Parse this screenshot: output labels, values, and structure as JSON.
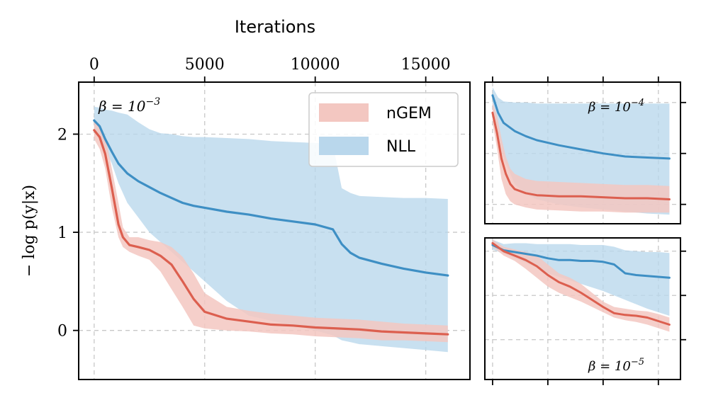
{
  "chart_data": [
    {
      "type": "line",
      "panel": "main",
      "top_xlabel": "Iterations",
      "ylabel": "− log p(y|x)",
      "annotation": "β = 10",
      "annotation_exp": "−3",
      "x_ticks": [
        0,
        5000,
        10000,
        15000
      ],
      "x_tick_labels": [
        "0",
        "5000",
        "10000",
        "15000"
      ],
      "y_ticks": [
        0,
        1,
        2
      ],
      "y_tick_labels": [
        "0",
        "1",
        "2"
      ],
      "xlim": [
        -700,
        17000
      ],
      "ylim": [
        -0.5,
        2.53
      ],
      "grid": true,
      "legend": {
        "position": "top-right",
        "entries": [
          "nGEM",
          "NLL"
        ]
      },
      "colors": {
        "nGEM": "#dc5f4f",
        "NLL": "#3e8fc4",
        "nGEM_band": "#f3c7c1",
        "NLL_band": "#b9d7ec"
      },
      "series": [
        {
          "name": "nGEM",
          "x": [
            0,
            250,
            500,
            800,
            1100,
            1300,
            1600,
            2000,
            2500,
            3000,
            3500,
            4000,
            4500,
            5000,
            6000,
            7000,
            8000,
            9000,
            10000,
            11000,
            12000,
            13000,
            14000,
            15000,
            16000
          ],
          "mean": [
            2.04,
            1.97,
            1.8,
            1.45,
            1.08,
            0.95,
            0.87,
            0.85,
            0.82,
            0.76,
            0.67,
            0.5,
            0.32,
            0.19,
            0.12,
            0.09,
            0.06,
            0.05,
            0.03,
            0.02,
            0.01,
            -0.01,
            -0.02,
            -0.03,
            -0.04
          ],
          "lower": [
            1.95,
            1.85,
            1.65,
            1.25,
            0.95,
            0.85,
            0.8,
            0.76,
            0.72,
            0.6,
            0.42,
            0.24,
            0.05,
            0.02,
            0.0,
            -0.01,
            -0.03,
            -0.04,
            -0.06,
            -0.07,
            -0.08,
            -0.1,
            -0.1,
            -0.11,
            -0.12
          ],
          "upper": [
            2.12,
            2.08,
            1.98,
            1.65,
            1.3,
            1.05,
            0.95,
            0.95,
            0.92,
            0.9,
            0.85,
            0.75,
            0.58,
            0.38,
            0.24,
            0.2,
            0.17,
            0.15,
            0.13,
            0.12,
            0.11,
            0.09,
            0.07,
            0.06,
            0.05
          ]
        },
        {
          "name": "NLL",
          "x": [
            0,
            250,
            500,
            800,
            1100,
            1500,
            2000,
            2500,
            3000,
            3500,
            4000,
            4500,
            5000,
            6000,
            7000,
            8000,
            9000,
            10000,
            10800,
            11200,
            11600,
            12000,
            13000,
            14000,
            15000,
            16000
          ],
          "mean": [
            2.14,
            2.08,
            1.95,
            1.82,
            1.7,
            1.6,
            1.52,
            1.46,
            1.4,
            1.35,
            1.3,
            1.27,
            1.25,
            1.21,
            1.18,
            1.14,
            1.11,
            1.08,
            1.03,
            0.88,
            0.79,
            0.74,
            0.68,
            0.63,
            0.59,
            0.56
          ],
          "lower": [
            2.05,
            1.98,
            1.85,
            1.7,
            1.5,
            1.3,
            1.15,
            1.0,
            0.9,
            0.8,
            0.7,
            0.6,
            0.5,
            0.3,
            0.15,
            0.1,
            0.05,
            0.0,
            -0.05,
            -0.1,
            -0.12,
            -0.14,
            -0.16,
            -0.18,
            -0.2,
            -0.22
          ],
          "upper": [
            2.28,
            2.27,
            2.25,
            2.24,
            2.22,
            2.2,
            2.12,
            2.05,
            2.01,
            2.0,
            1.98,
            1.97,
            1.97,
            1.96,
            1.95,
            1.93,
            1.92,
            1.91,
            1.9,
            1.45,
            1.4,
            1.37,
            1.36,
            1.35,
            1.35,
            1.34
          ]
        }
      ]
    },
    {
      "type": "line",
      "panel": "top-right",
      "annotation": "β = 10",
      "annotation_exp": "−4",
      "x_ticks": [
        0,
        5000,
        10000,
        15000
      ],
      "xlim": [
        -700,
        17000
      ],
      "ylim": [
        1.06,
        2.45
      ],
      "y_ticks": [
        1.25,
        1.75,
        2.25
      ],
      "grid": true,
      "series": [
        {
          "name": "nGEM",
          "x": [
            0,
            400,
            800,
            1200,
            1600,
            2000,
            3000,
            4000,
            6000,
            8000,
            10000,
            12000,
            14000,
            16000
          ],
          "mean": [
            2.15,
            1.95,
            1.7,
            1.55,
            1.45,
            1.4,
            1.36,
            1.34,
            1.33,
            1.33,
            1.32,
            1.31,
            1.31,
            1.3
          ],
          "lower": [
            2.05,
            1.8,
            1.5,
            1.35,
            1.28,
            1.25,
            1.22,
            1.2,
            1.19,
            1.18,
            1.18,
            1.17,
            1.17,
            1.17
          ],
          "upper": [
            2.25,
            2.12,
            1.9,
            1.72,
            1.6,
            1.55,
            1.5,
            1.48,
            1.47,
            1.46,
            1.45,
            1.44,
            1.44,
            1.43
          ]
        },
        {
          "name": "NLL",
          "x": [
            0,
            500,
            1000,
            2000,
            3000,
            4000,
            6000,
            8000,
            10000,
            12000,
            14000,
            16000
          ],
          "mean": [
            2.32,
            2.15,
            2.05,
            1.97,
            1.92,
            1.88,
            1.83,
            1.79,
            1.75,
            1.72,
            1.71,
            1.7
          ],
          "lower": [
            2.2,
            1.95,
            1.7,
            1.45,
            1.35,
            1.3,
            1.25,
            1.22,
            1.2,
            1.18,
            1.16,
            1.15
          ],
          "upper": [
            2.4,
            2.3,
            2.26,
            2.25,
            2.25,
            2.24,
            2.24,
            2.24,
            2.24,
            2.24,
            2.24,
            2.24
          ]
        }
      ]
    },
    {
      "type": "line",
      "panel": "bottom-right",
      "annotation": "β = 10",
      "annotation_exp": "−5",
      "x_ticks": [
        0,
        5000,
        10000,
        15000
      ],
      "xlim": [
        -700,
        17000
      ],
      "ylim": [
        -0.2,
        1.4
      ],
      "y_ticks": [
        0.25,
        0.75,
        1.25
      ],
      "grid": true,
      "series": [
        {
          "name": "nGEM",
          "x": [
            0,
            1000,
            2000,
            3000,
            4000,
            5000,
            6000,
            7000,
            8000,
            9000,
            10000,
            11000,
            12000,
            13000,
            14000,
            15000,
            16000
          ],
          "mean": [
            1.34,
            1.25,
            1.2,
            1.15,
            1.08,
            0.98,
            0.9,
            0.85,
            0.78,
            0.7,
            0.62,
            0.55,
            0.53,
            0.52,
            0.5,
            0.46,
            0.42
          ],
          "lower": [
            1.3,
            1.2,
            1.14,
            1.05,
            0.95,
            0.85,
            0.78,
            0.73,
            0.68,
            0.62,
            0.56,
            0.5,
            0.47,
            0.45,
            0.42,
            0.38,
            0.34
          ],
          "upper": [
            1.38,
            1.3,
            1.27,
            1.24,
            1.2,
            1.1,
            1.0,
            0.95,
            0.88,
            0.78,
            0.68,
            0.62,
            0.6,
            0.58,
            0.57,
            0.54,
            0.5
          ]
        },
        {
          "name": "NLL",
          "x": [
            0,
            1000,
            2000,
            3000,
            4000,
            5000,
            6000,
            7000,
            8000,
            9000,
            10000,
            11000,
            12000,
            13000,
            14000,
            15000,
            16000
          ],
          "mean": [
            1.32,
            1.26,
            1.24,
            1.22,
            1.2,
            1.17,
            1.15,
            1.15,
            1.14,
            1.14,
            1.13,
            1.1,
            1.0,
            0.98,
            0.97,
            0.96,
            0.95
          ],
          "lower": [
            1.27,
            1.22,
            1.17,
            1.12,
            1.06,
            1.0,
            0.96,
            0.92,
            0.88,
            0.84,
            0.8,
            0.75,
            0.7,
            0.65,
            0.6,
            0.56,
            0.52
          ],
          "upper": [
            1.38,
            1.33,
            1.34,
            1.34,
            1.33,
            1.33,
            1.33,
            1.33,
            1.32,
            1.32,
            1.32,
            1.3,
            1.26,
            1.25,
            1.24,
            1.24,
            1.23
          ]
        }
      ]
    }
  ]
}
